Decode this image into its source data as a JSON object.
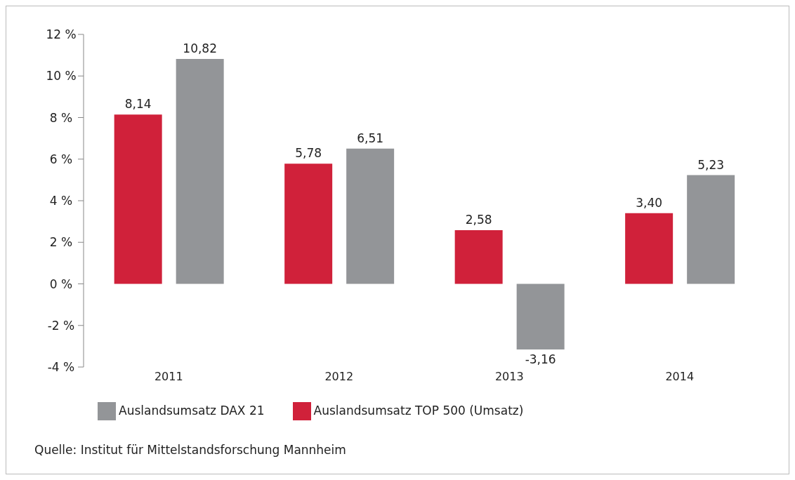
{
  "chart_data": {
    "type": "bar",
    "categories": [
      "2011",
      "2012",
      "2013",
      "2014"
    ],
    "series": [
      {
        "name": "Auslandsumsatz TOP 500 (Umsatz)",
        "color": "#d0213a",
        "values": [
          8.14,
          5.78,
          2.58,
          3.4
        ],
        "value_labels": [
          "8,14",
          "5,78",
          "2,58",
          "3,40"
        ]
      },
      {
        "name": "Auslandsumsatz DAX 21",
        "color": "#939598",
        "values": [
          10.82,
          6.51,
          -3.16,
          5.23
        ],
        "value_labels": [
          "10,82",
          "6,51",
          "-3,16",
          "5,23"
        ]
      }
    ],
    "ylim": [
      -4,
      12
    ],
    "yticks": [
      {
        "value": -4,
        "label": "-4 %"
      },
      {
        "value": -2,
        "label": "-2 %"
      },
      {
        "value": 0,
        "label": "0 %"
      },
      {
        "value": 2,
        "label": "2 %"
      },
      {
        "value": 4,
        "label": "4 %"
      },
      {
        "value": 6,
        "label": "6 %"
      },
      {
        "value": 8,
        "label": "8 %"
      },
      {
        "value": 10,
        "label": "10 %"
      },
      {
        "value": 12,
        "label": "12 %"
      }
    ],
    "grid": false,
    "legend": "bottom left",
    "annotations": [
      "Quelle: Institut für Mittelstandsforschung Mannheim"
    ]
  }
}
